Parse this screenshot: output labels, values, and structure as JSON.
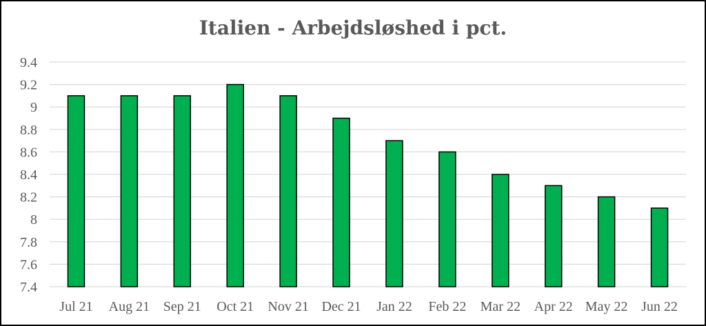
{
  "chart_data": {
    "type": "bar",
    "title": "Italien - Arbejdsløshed i pct.",
    "xlabel": "",
    "ylabel": "",
    "categories": [
      "Jul 21",
      "Aug 21",
      "Sep 21",
      "Oct 21",
      "Nov 21",
      "Dec 21",
      "Jan 22",
      "Feb 22",
      "Mar 22",
      "Apr 22",
      "May 22",
      "Jun 22"
    ],
    "values": [
      9.1,
      9.1,
      9.1,
      9.2,
      9.1,
      8.9,
      8.7,
      8.6,
      8.4,
      8.3,
      8.2,
      8.1
    ],
    "ylim": [
      7.4,
      9.4
    ],
    "yticks": [
      7.4,
      7.6,
      7.8,
      8,
      8.2,
      8.4,
      8.6,
      8.8,
      9,
      9.2,
      9.4
    ],
    "ytick_labels": [
      "7.4",
      "7.6",
      "7.8",
      "8",
      "8.2",
      "8.4",
      "8.6",
      "8.8",
      "9",
      "9.2",
      "9.4"
    ],
    "grid": true,
    "legend": "none",
    "bar_color": "#00B050",
    "bar_edge_color": "#000000",
    "grid_color": "#D9D9D9",
    "text_color": "#595959"
  }
}
